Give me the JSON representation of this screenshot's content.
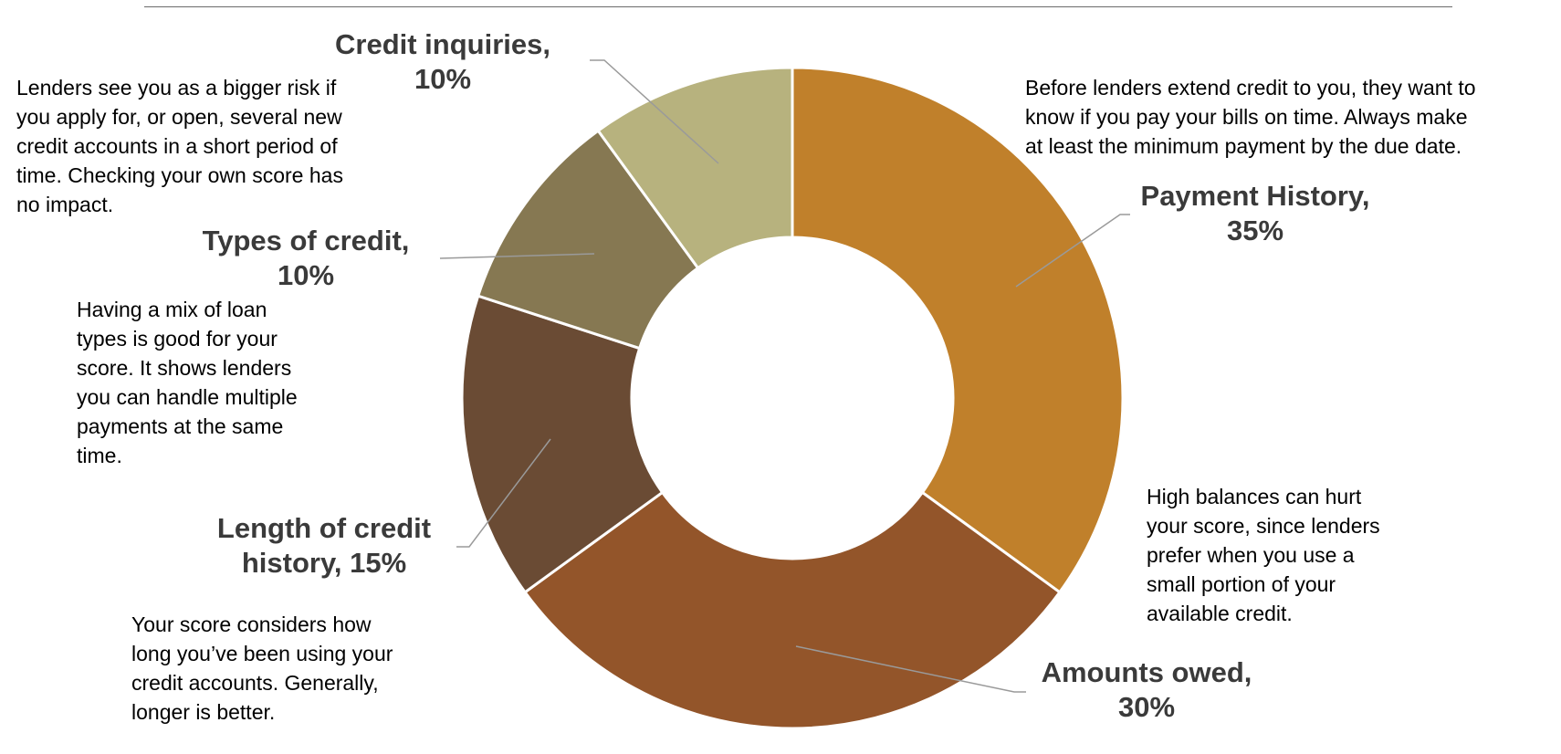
{
  "chart_data": {
    "type": "pie",
    "variant": "donut",
    "title": "",
    "slices": [
      {
        "label": "Payment History",
        "value": 35,
        "color": "#C0802B"
      },
      {
        "label": "Amounts owed",
        "value": 30,
        "color": "#93552A"
      },
      {
        "label": "Length of credit history",
        "value": 15,
        "color": "#6A4B34"
      },
      {
        "label": "Types of credit",
        "value": 10,
        "color": "#867852"
      },
      {
        "label": "Credit inquiries",
        "value": 10,
        "color": "#B7B27E"
      }
    ],
    "data_labels": {
      "payment_history": [
        "Payment History,",
        "35%"
      ],
      "amounts_owed": [
        "Amounts owed,",
        "30%"
      ],
      "length_of_credit": [
        "Length of credit",
        "history, 15%"
      ],
      "types_of_credit": [
        "Types of credit,",
        "10%"
      ],
      "credit_inquiries": [
        "Credit inquiries,",
        "10%"
      ]
    },
    "annotations": {
      "payment_history": [
        "Before lenders extend credit to you, they want to",
        "know if you pay your bills on time.  Always make",
        "at least the minimum payment by the due date."
      ],
      "amounts_owed": [
        "High balances can hurt",
        "your score, since lenders",
        "prefer when you use a",
        "small portion of your",
        "available credit."
      ],
      "length_of_credit": [
        "Your score considers how",
        "long you’ve been using your",
        "credit accounts.  Generally,",
        "longer is better."
      ],
      "types_of_credit": [
        "Having a mix of loan",
        "types is good for your",
        "score.  It shows lenders",
        "you can handle multiple",
        "payments at the same",
        "time."
      ],
      "credit_inquiries": [
        "Lenders see you as a bigger risk if",
        "you apply for, or open, several new",
        "credit accounts in a short period of",
        "time.  Checking your own score has",
        "no impact."
      ]
    },
    "colors": {
      "leader_line": "#9a9a9a",
      "label_text": "#3a3a3a",
      "slice_border": "#ffffff"
    }
  }
}
